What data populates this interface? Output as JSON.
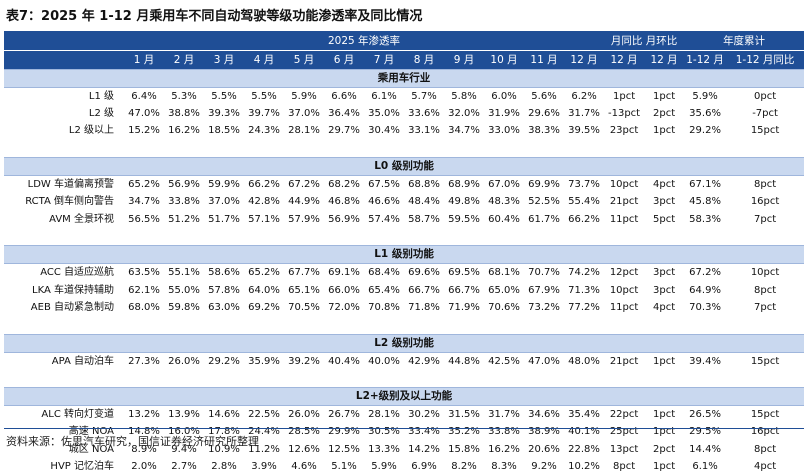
{
  "title": "表7：2025 年 1-12 月乘用车不同自动驾驶等级功能渗透率及同比情况",
  "header": {
    "group_2025": "2025 年渗透率",
    "group_yoy_mom": "月同比 月环比",
    "group_annual": "年度累计",
    "months": [
      "1 月",
      "2 月",
      "3 月",
      "4 月",
      "5 月",
      "6 月",
      "7 月",
      "8 月",
      "9 月",
      "10 月",
      "11 月",
      "12 月"
    ],
    "extra": [
      "12 月",
      "12 月",
      "1-12 月",
      "1-12 月同比"
    ]
  },
  "sections": [
    {
      "title": "乘用车行业",
      "rows": [
        {
          "label": "L1 级",
          "values": [
            "6.4%",
            "5.3%",
            "5.5%",
            "5.5%",
            "5.9%",
            "6.6%",
            "6.1%",
            "5.7%",
            "5.8%",
            "6.0%",
            "5.6%",
            "6.2%"
          ],
          "yoy": "1pct",
          "mom": "1pct",
          "annual": "5.9%",
          "annual_yoy": "0pct"
        },
        {
          "label": "L2 级",
          "values": [
            "47.0%",
            "38.8%",
            "39.3%",
            "39.7%",
            "37.0%",
            "36.4%",
            "35.0%",
            "33.6%",
            "32.0%",
            "31.9%",
            "29.6%",
            "31.7%"
          ],
          "yoy": "-13pct",
          "mom": "2pct",
          "annual": "35.6%",
          "annual_yoy": "-7pct"
        },
        {
          "label": "L2 级以上",
          "values": [
            "15.2%",
            "16.2%",
            "18.5%",
            "24.3%",
            "28.1%",
            "29.7%",
            "30.4%",
            "33.1%",
            "34.7%",
            "33.0%",
            "38.3%",
            "39.5%"
          ],
          "yoy": "23pct",
          "mom": "1pct",
          "annual": "29.2%",
          "annual_yoy": "15pct"
        }
      ]
    },
    {
      "title": "L0 级别功能",
      "rows": [
        {
          "label": "LDW 车道偏离预警",
          "values": [
            "65.2%",
            "56.9%",
            "59.9%",
            "66.2%",
            "67.2%",
            "68.2%",
            "67.5%",
            "68.8%",
            "68.9%",
            "67.0%",
            "69.9%",
            "73.7%"
          ],
          "yoy": "10pct",
          "mom": "4pct",
          "annual": "67.1%",
          "annual_yoy": "8pct"
        },
        {
          "label": "RCTA 倒车侧向警告",
          "values": [
            "34.7%",
            "33.8%",
            "37.0%",
            "42.8%",
            "44.9%",
            "46.8%",
            "46.6%",
            "48.4%",
            "49.8%",
            "48.3%",
            "52.5%",
            "55.4%"
          ],
          "yoy": "21pct",
          "mom": "3pct",
          "annual": "45.8%",
          "annual_yoy": "16pct"
        },
        {
          "label": "AVM 全景环视",
          "values": [
            "56.5%",
            "51.2%",
            "51.7%",
            "57.1%",
            "57.9%",
            "56.9%",
            "57.4%",
            "58.7%",
            "59.5%",
            "60.4%",
            "61.7%",
            "66.2%"
          ],
          "yoy": "11pct",
          "mom": "5pct",
          "annual": "58.3%",
          "annual_yoy": "7pct"
        }
      ]
    },
    {
      "title": "L1 级别功能",
      "rows": [
        {
          "label": "ACC 自适应巡航",
          "values": [
            "63.5%",
            "55.1%",
            "58.6%",
            "65.2%",
            "67.7%",
            "69.1%",
            "68.4%",
            "69.6%",
            "69.5%",
            "68.1%",
            "70.7%",
            "74.2%"
          ],
          "yoy": "12pct",
          "mom": "3pct",
          "annual": "67.2%",
          "annual_yoy": "10pct"
        },
        {
          "label": "LKA 车道保持辅助",
          "values": [
            "62.1%",
            "55.0%",
            "57.8%",
            "64.0%",
            "65.1%",
            "66.0%",
            "65.4%",
            "66.7%",
            "66.7%",
            "65.0%",
            "67.9%",
            "71.3%"
          ],
          "yoy": "10pct",
          "mom": "3pct",
          "annual": "64.9%",
          "annual_yoy": "8pct"
        },
        {
          "label": "AEB 自动紧急制动",
          "values": [
            "68.0%",
            "59.8%",
            "63.0%",
            "69.2%",
            "70.5%",
            "72.0%",
            "70.8%",
            "71.8%",
            "71.9%",
            "70.6%",
            "73.2%",
            "77.2%"
          ],
          "yoy": "11pct",
          "mom": "4pct",
          "annual": "70.3%",
          "annual_yoy": "7pct"
        }
      ]
    },
    {
      "title": "L2 级别功能",
      "rows": [
        {
          "label": "APA 自动泊车",
          "values": [
            "27.3%",
            "26.0%",
            "29.2%",
            "35.9%",
            "39.2%",
            "40.4%",
            "40.0%",
            "42.9%",
            "44.8%",
            "42.5%",
            "47.0%",
            "48.0%"
          ],
          "yoy": "21pct",
          "mom": "1pct",
          "annual": "39.4%",
          "annual_yoy": "15pct"
        }
      ]
    },
    {
      "title": "L2+级别及以上功能",
      "rows": [
        {
          "label": "ALC 转向灯变道",
          "values": [
            "13.2%",
            "13.9%",
            "14.6%",
            "22.5%",
            "26.0%",
            "26.7%",
            "28.1%",
            "30.2%",
            "31.5%",
            "31.7%",
            "34.6%",
            "35.4%"
          ],
          "yoy": "22pct",
          "mom": "1pct",
          "annual": "26.5%",
          "annual_yoy": "15pct"
        },
        {
          "label": "高速 NOA",
          "values": [
            "14.8%",
            "16.0%",
            "17.8%",
            "24.4%",
            "28.5%",
            "29.9%",
            "30.5%",
            "33.4%",
            "35.2%",
            "33.8%",
            "38.9%",
            "40.1%"
          ],
          "yoy": "25pct",
          "mom": "1pct",
          "annual": "29.5%",
          "annual_yoy": "16pct"
        },
        {
          "label": "城区 NOA",
          "values": [
            "8.9%",
            "9.4%",
            "10.9%",
            "11.2%",
            "12.6%",
            "12.5%",
            "13.3%",
            "14.2%",
            "15.8%",
            "16.2%",
            "20.6%",
            "22.8%"
          ],
          "yoy": "13pct",
          "mom": "2pct",
          "annual": "14.4%",
          "annual_yoy": "8pct"
        },
        {
          "label": "HVP 记忆泊车",
          "values": [
            "2.0%",
            "2.7%",
            "2.8%",
            "3.9%",
            "4.6%",
            "5.1%",
            "5.9%",
            "6.9%",
            "8.2%",
            "8.3%",
            "9.2%",
            "10.2%"
          ],
          "yoy": "8pct",
          "mom": "1pct",
          "annual": "6.1%",
          "annual_yoy": "4pct"
        }
      ]
    }
  ],
  "source": "资料来源：佐思汽车研究，国信证券经济研究所整理"
}
